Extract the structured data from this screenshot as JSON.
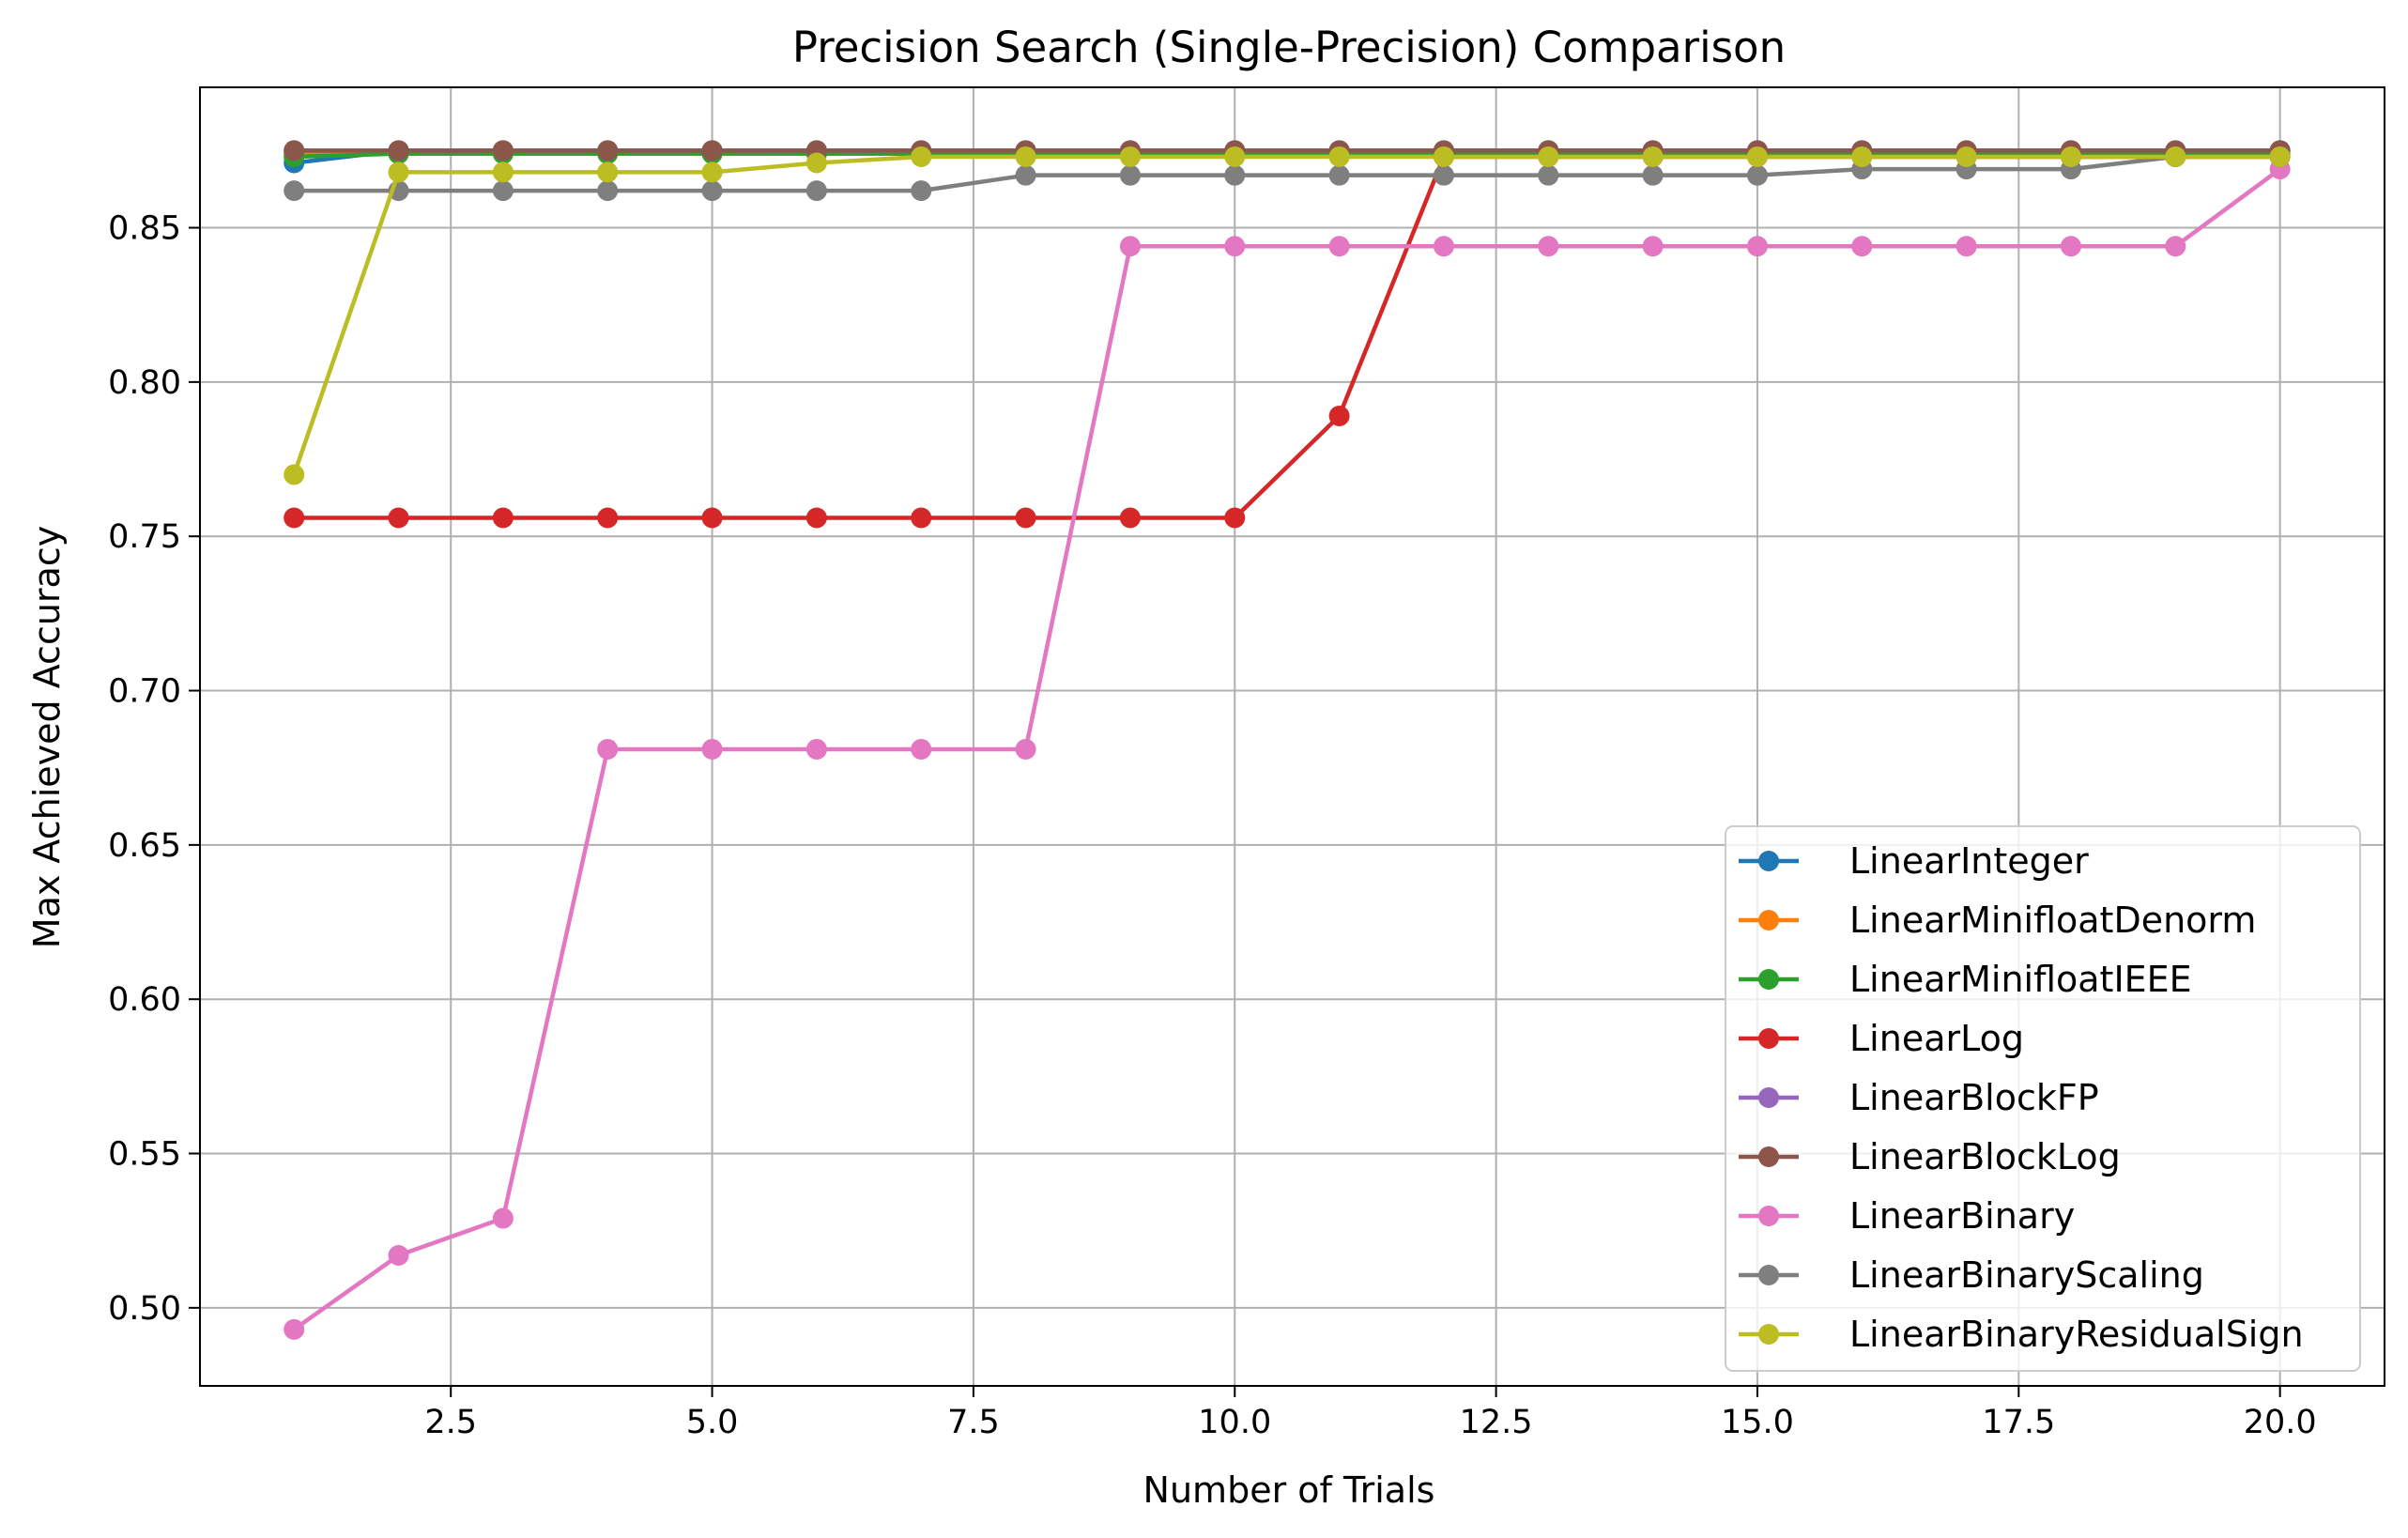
{
  "chart_data": {
    "type": "line",
    "title": "Precision Search (Single-Precision) Comparison",
    "xlabel": "Number of Trials",
    "ylabel": "Max Achieved Accuracy",
    "xlim": [
      0.1,
      21.0
    ],
    "ylim": [
      0.4747,
      0.8955
    ],
    "xticks": [
      "2.5",
      "5.0",
      "7.5",
      "10.0",
      "12.5",
      "15.0",
      "17.5",
      "20.0"
    ],
    "yticks": [
      "0.50",
      "0.55",
      "0.60",
      "0.65",
      "0.70",
      "0.75",
      "0.80",
      "0.85"
    ],
    "grid": true,
    "legend_position": "lower right",
    "x": [
      1,
      2,
      3,
      4,
      5,
      6,
      7,
      8,
      9,
      10,
      11,
      12,
      13,
      14,
      15,
      16,
      17,
      18,
      19,
      20
    ],
    "series": [
      {
        "name": "LinearInteger",
        "color": "#1f77b4",
        "values": [
          0.871,
          0.875,
          0.875,
          0.875,
          0.875,
          0.875,
          0.875,
          0.875,
          0.875,
          0.875,
          0.875,
          0.875,
          0.875,
          0.875,
          0.875,
          0.875,
          0.875,
          0.875,
          0.875,
          0.875
        ]
      },
      {
        "name": "LinearMinifloatDenorm",
        "color": "#ff7f0e",
        "values": [
          0.874,
          0.874,
          0.874,
          0.874,
          0.874,
          0.874,
          0.874,
          0.874,
          0.874,
          0.874,
          0.874,
          0.874,
          0.874,
          0.874,
          0.874,
          0.874,
          0.874,
          0.874,
          0.874,
          0.874
        ]
      },
      {
        "name": "LinearMinifloatIEEE",
        "color": "#2ca02c",
        "values": [
          0.873,
          0.874,
          0.874,
          0.874,
          0.874,
          0.874,
          0.874,
          0.874,
          0.874,
          0.874,
          0.874,
          0.874,
          0.874,
          0.874,
          0.874,
          0.874,
          0.874,
          0.874,
          0.874,
          0.874
        ]
      },
      {
        "name": "LinearLog",
        "color": "#d62728",
        "values": [
          0.756,
          0.756,
          0.756,
          0.756,
          0.756,
          0.756,
          0.756,
          0.756,
          0.756,
          0.756,
          0.789,
          0.873,
          0.873,
          0.873,
          0.873,
          0.873,
          0.873,
          0.873,
          0.873,
          0.873
        ]
      },
      {
        "name": "LinearBlockFP",
        "color": "#9467bd",
        "values": [
          0.875,
          0.875,
          0.875,
          0.875,
          0.875,
          0.875,
          0.875,
          0.875,
          0.875,
          0.875,
          0.875,
          0.875,
          0.875,
          0.875,
          0.875,
          0.875,
          0.875,
          0.875,
          0.875,
          0.875
        ]
      },
      {
        "name": "LinearBlockLog",
        "color": "#8c564b",
        "values": [
          0.875,
          0.875,
          0.875,
          0.875,
          0.875,
          0.875,
          0.875,
          0.875,
          0.875,
          0.875,
          0.875,
          0.875,
          0.875,
          0.875,
          0.875,
          0.875,
          0.875,
          0.875,
          0.875,
          0.875
        ]
      },
      {
        "name": "LinearBinary",
        "color": "#e377c2",
        "values": [
          0.493,
          0.517,
          0.529,
          0.681,
          0.681,
          0.681,
          0.681,
          0.681,
          0.844,
          0.844,
          0.844,
          0.844,
          0.844,
          0.844,
          0.844,
          0.844,
          0.844,
          0.844,
          0.844,
          0.869
        ]
      },
      {
        "name": "LinearBinaryScaling",
        "color": "#7f7f7f",
        "values": [
          0.862,
          0.862,
          0.862,
          0.862,
          0.862,
          0.862,
          0.862,
          0.867,
          0.867,
          0.867,
          0.867,
          0.867,
          0.867,
          0.867,
          0.867,
          0.869,
          0.869,
          0.869,
          0.873,
          0.873
        ]
      },
      {
        "name": "LinearBinaryResidualSign",
        "color": "#bcbd22",
        "values": [
          0.77,
          0.868,
          0.868,
          0.868,
          0.868,
          0.871,
          0.873,
          0.873,
          0.873,
          0.873,
          0.873,
          0.873,
          0.873,
          0.873,
          0.873,
          0.873,
          0.873,
          0.873,
          0.873,
          0.873
        ]
      }
    ]
  }
}
